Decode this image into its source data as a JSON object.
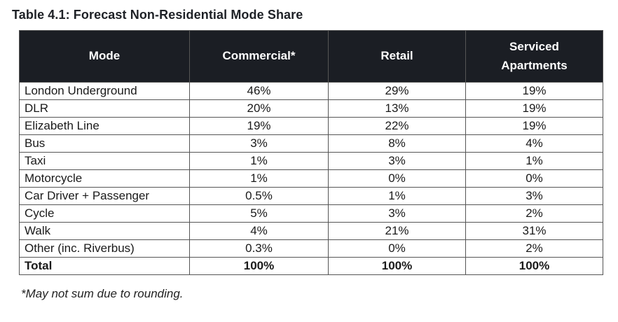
{
  "title": "Table 4.1: Forecast Non-Residential Mode Share",
  "table": {
    "columns": [
      "Mode",
      "Commercial*",
      "Retail",
      "Serviced Apartments"
    ],
    "rows": [
      [
        "London Underground",
        "46%",
        "29%",
        "19%"
      ],
      [
        "DLR",
        "20%",
        "13%",
        "19%"
      ],
      [
        "Elizabeth Line",
        "19%",
        "22%",
        "19%"
      ],
      [
        "Bus",
        "3%",
        "8%",
        "4%"
      ],
      [
        "Taxi",
        "1%",
        "3%",
        "1%"
      ],
      [
        "Motorcycle",
        "1%",
        "0%",
        "0%"
      ],
      [
        "Car Driver + Passenger",
        "0.5%",
        "1%",
        "3%"
      ],
      [
        "Cycle",
        "5%",
        "3%",
        "2%"
      ],
      [
        "Walk",
        "4%",
        "21%",
        "31%"
      ],
      [
        "Other (inc. Riverbus)",
        "0.3%",
        "0%",
        "2%"
      ]
    ],
    "total_row": [
      "Total",
      "100%",
      "100%",
      "100%"
    ]
  },
  "footnote": "*May not sum due to rounding.",
  "colors": {
    "header_bg": "#1b1e24",
    "header_text": "#ffffff",
    "grid_border": "#555555",
    "body_text": "#1a1a1a"
  }
}
